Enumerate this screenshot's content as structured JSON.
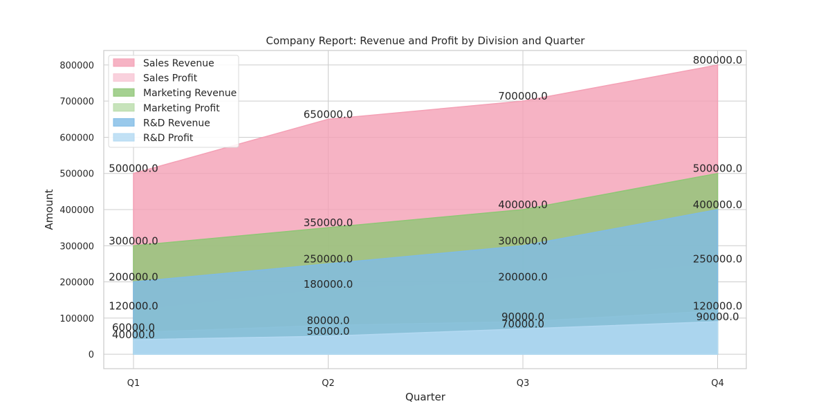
{
  "chart_data": {
    "type": "area",
    "title": "Company Report: Revenue and Profit by Division and Quarter",
    "xlabel": "Quarter",
    "ylabel": "Amount",
    "categories": [
      "Q1",
      "Q2",
      "Q3",
      "Q4"
    ],
    "ylim": [
      -40000,
      840000
    ],
    "yticks": [
      0,
      100000,
      200000,
      300000,
      400000,
      500000,
      600000,
      700000,
      800000
    ],
    "grid": true,
    "legend_position": "top-left",
    "series": [
      {
        "name": "Sales Revenue",
        "values": [
          500000,
          650000,
          700000,
          800000
        ],
        "color": "#f4a0b5",
        "opacity": 0.8,
        "labels": [
          "500000.0",
          "650000.0",
          "700000.0",
          "800000.0"
        ]
      },
      {
        "name": "Sales Profit",
        "values": [
          120000,
          180000,
          200000,
          250000
        ],
        "color": "#f8c6d4",
        "opacity": 0.8,
        "labels": [
          "120000.0",
          "180000.0",
          "200000.0",
          "250000.0"
        ]
      },
      {
        "name": "Marketing Revenue",
        "values": [
          300000,
          350000,
          400000,
          500000
        ],
        "color": "#8ec675",
        "opacity": 0.8,
        "labels": [
          "300000.0",
          "350000.0",
          "400000.0",
          "500000.0"
        ]
      },
      {
        "name": "Marketing Profit",
        "values": [
          60000,
          80000,
          90000,
          120000
        ],
        "color": "#b9dcaa",
        "opacity": 0.8,
        "labels": [
          "60000.0",
          "80000.0",
          "90000.0",
          "120000.0"
        ]
      },
      {
        "name": "R&D Revenue",
        "values": [
          200000,
          250000,
          300000,
          400000
        ],
        "color": "#7fbbe6",
        "opacity": 0.8,
        "labels": [
          "200000.0",
          "250000.0",
          "300000.0",
          "400000.0"
        ]
      },
      {
        "name": "R&D Profit",
        "values": [
          40000,
          50000,
          70000,
          90000
        ],
        "color": "#b3d9f2",
        "opacity": 0.8,
        "labels": [
          "40000.0",
          "50000.0",
          "70000.0",
          "90000.0"
        ]
      }
    ]
  }
}
